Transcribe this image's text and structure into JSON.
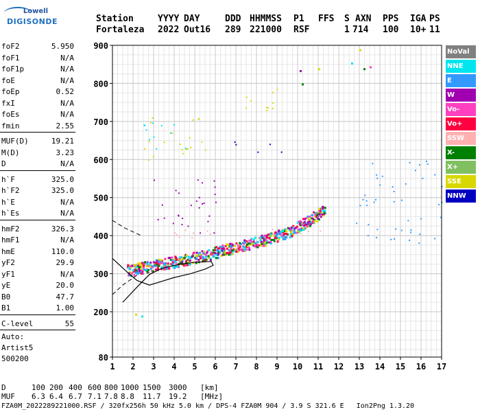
{
  "logo": {
    "line1": "Lowell",
    "line2": "DIGISONDE"
  },
  "header": {
    "labels": [
      "Station",
      "YYYY",
      "DAY",
      "DDD",
      "HHMMSS",
      "P1",
      "FFS",
      "S",
      "AXN",
      "PPS",
      "IGA",
      "PS"
    ],
    "values": [
      "Fortaleza",
      "2022",
      "Out16",
      "289",
      "221000",
      "RSF",
      "",
      "1",
      "714",
      "100",
      "10+",
      "11"
    ]
  },
  "params": [
    {
      "k": "foF2",
      "v": "5.950"
    },
    {
      "k": "foF1",
      "v": "N/A"
    },
    {
      "k": "foF1p",
      "v": "N/A"
    },
    {
      "k": "foE",
      "v": "N/A"
    },
    {
      "k": "foEp",
      "v": "0.52"
    },
    {
      "k": "fxI",
      "v": "N/A"
    },
    {
      "k": "foEs",
      "v": "N/A"
    },
    {
      "k": "fmin",
      "v": "2.55"
    },
    {
      "k": "MUF(D)",
      "v": "19.21"
    },
    {
      "k": "M(D)",
      "v": "3.23"
    },
    {
      "k": "D",
      "v": "N/A"
    },
    {
      "k": "h`F",
      "v": "325.0"
    },
    {
      "k": "h`F2",
      "v": "325.0"
    },
    {
      "k": "h`E",
      "v": "N/A"
    },
    {
      "k": "h`Es",
      "v": "N/A"
    },
    {
      "k": "hmF2",
      "v": "326.3"
    },
    {
      "k": "hmF1",
      "v": "N/A"
    },
    {
      "k": "hmE",
      "v": "110.0"
    },
    {
      "k": "yF2",
      "v": "29.9"
    },
    {
      "k": "yF1",
      "v": "N/A"
    },
    {
      "k": "yE",
      "v": "20.0"
    },
    {
      "k": "B0",
      "v": "47.7"
    },
    {
      "k": "B1",
      "v": "1.00"
    },
    {
      "k": "C-level",
      "v": "55"
    }
  ],
  "autoscaling": {
    "line1": "Auto:",
    "line2": "Artist5",
    "line3": "500200"
  },
  "legend": [
    {
      "label": "NoVal",
      "color": "#808080"
    },
    {
      "label": "NNE",
      "color": "#00e5ee"
    },
    {
      "label": "E",
      "color": "#3399ff"
    },
    {
      "label": "W",
      "color": "#a000b0"
    },
    {
      "label": "Vo-",
      "color": "#ff40c0"
    },
    {
      "label": "Vo+",
      "color": "#ff0040"
    },
    {
      "label": "SSW",
      "color": "#ffb0b0"
    },
    {
      "label": "X-",
      "color": "#008000"
    },
    {
      "label": "X+",
      "color": "#80c060"
    },
    {
      "label": "SSE",
      "color": "#d8d800"
    },
    {
      "label": "NNW",
      "color": "#0000c0"
    }
  ],
  "muf_table": {
    "d_label": "D",
    "d_values": [
      "100",
      "200",
      "400",
      "600",
      "800",
      "1000",
      "1500",
      "3000"
    ],
    "d_unit": "[km]",
    "muf_label": "MUF",
    "muf_values": [
      "6.3",
      "6.4",
      "6.7",
      "7.1",
      "7.8",
      "8.8",
      "11.7",
      "19.2"
    ],
    "muf_unit": "[MHz]"
  },
  "footer": "FZA0M_2022289221000.RSF / 320fx256h 50 kHz 5.0 km / DPS-4 FZA0M 904 / 3.9 S 321.6 E   Ion2Png 1.3.20",
  "chart_data": {
    "type": "scatter",
    "xlim": [
      1,
      17
    ],
    "ylim": [
      80,
      900
    ],
    "x_ticks": [
      1,
      2,
      3,
      4,
      5,
      6,
      7,
      8,
      9,
      10,
      11,
      12,
      13,
      14,
      15,
      16,
      17
    ],
    "y_ticks": [
      80,
      200,
      300,
      400,
      500,
      600,
      700,
      800,
      900
    ],
    "grid": true,
    "trace_main": [
      [
        1.7,
        310
      ],
      [
        2.5,
        318
      ],
      [
        3.5,
        328
      ],
      [
        4.5,
        338
      ],
      [
        5.5,
        350
      ],
      [
        6.5,
        365
      ],
      [
        7.5,
        378
      ],
      [
        8.5,
        392
      ],
      [
        9.5,
        410
      ],
      [
        10.5,
        440
      ],
      [
        11.3,
        470
      ]
    ],
    "trace_blobs": [
      {
        "series": "W",
        "x0": 3.0,
        "x1": 6.2,
        "y0": 400,
        "y1": 560
      },
      {
        "series": "SSW",
        "x0": 3.0,
        "x1": 6.0,
        "y0": 385,
        "y1": 430
      },
      {
        "series": "SSE",
        "x0": 2.5,
        "x1": 5.5,
        "y0": 600,
        "y1": 720
      },
      {
        "series": "NNE",
        "x0": 2.5,
        "x1": 4.8,
        "y0": 610,
        "y1": 700
      },
      {
        "series": "NNW",
        "x0": 6.6,
        "x1": 9.5,
        "y0": 620,
        "y1": 650
      },
      {
        "series": "SSE",
        "x0": 7.0,
        "x1": 9.0,
        "y0": 700,
        "y1": 790
      },
      {
        "series": "E",
        "x0": 12.5,
        "x1": 17.0,
        "y0": 380,
        "y1": 450
      },
      {
        "series": "E",
        "x0": 13.0,
        "x1": 17.0,
        "y0": 480,
        "y1": 600
      },
      {
        "series": "SSW",
        "x0": 8.0,
        "x1": 11.2,
        "y0": 390,
        "y1": 420
      }
    ],
    "profile_curve": [
      [
        1.5,
        225
      ],
      [
        2.2,
        265
      ],
      [
        2.8,
        298
      ],
      [
        3.4,
        314
      ],
      [
        4.2,
        324
      ],
      [
        5.0,
        330
      ],
      [
        5.8,
        332
      ],
      [
        5.9,
        322
      ],
      [
        5.5,
        312
      ],
      [
        4.8,
        300
      ],
      [
        4.0,
        290
      ],
      [
        3.4,
        280
      ],
      [
        2.8,
        270
      ],
      [
        2.2,
        282
      ],
      [
        1.8,
        300
      ],
      [
        1.2,
        330
      ],
      [
        1.0,
        340
      ]
    ]
  }
}
